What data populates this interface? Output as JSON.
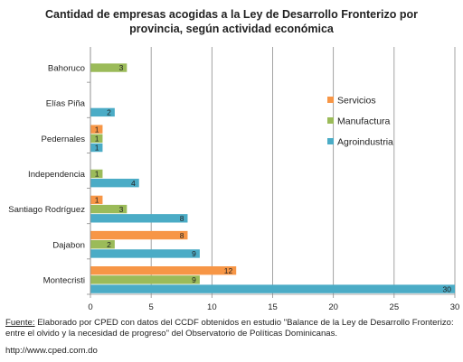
{
  "chart_data": {
    "type": "bar",
    "orientation": "horizontal",
    "title_line1": "Cantidad de empresas acogidas a la Ley de Desarrollo Fronterizo por",
    "title_line2": "provincia, según actividad económica",
    "categories": [
      "Bahoruco",
      "Elías Piña",
      "Pedernales",
      "Independencia",
      "Santiago Rodríguez",
      "Dajabon",
      "Montecristi"
    ],
    "series": [
      {
        "name": "Servicios",
        "color": "#f79646",
        "values": [
          null,
          null,
          1,
          null,
          1,
          8,
          12
        ]
      },
      {
        "name": "Manufactura",
        "color": "#9bbb59",
        "values": [
          3,
          null,
          1,
          1,
          3,
          2,
          9
        ]
      },
      {
        "name": "Agroindustria",
        "color": "#4bacc6",
        "values": [
          null,
          2,
          1,
          4,
          8,
          9,
          30
        ]
      }
    ],
    "xlim": [
      0,
      30
    ],
    "xticks": [
      "0",
      "5",
      "10",
      "15",
      "20",
      "25",
      "30"
    ],
    "grid": true,
    "legend_position": "right"
  },
  "footer": {
    "label": "Fuente:",
    "text": " Elaborado por CPED con datos del CCDF obtenidos en estudio \"Balance de la Ley de Desarrollo Fronterizo: entre el olvido y la necesidad de progreso\" del Observatorio de Políticas Dominicanas.",
    "url": "http://www.cped.com.do"
  }
}
